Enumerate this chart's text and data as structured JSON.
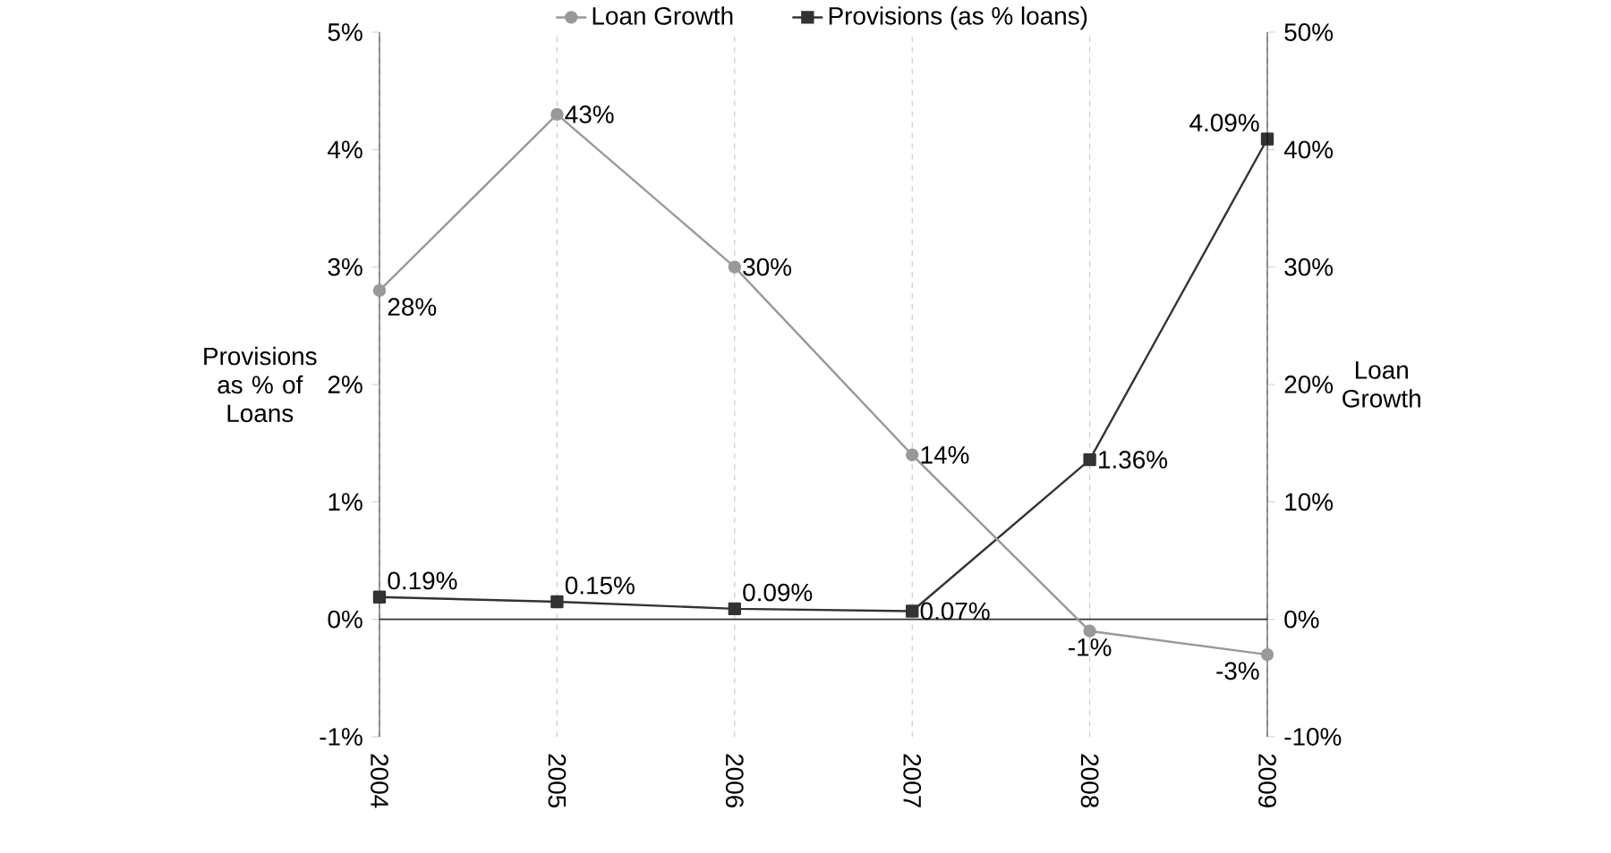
{
  "chart_data": {
    "type": "line",
    "categories": [
      "2004",
      "2005",
      "2006",
      "2007",
      "2008",
      "2009"
    ],
    "ylabel": "Provisions as % of Loans",
    "y2label": "Loan Growth",
    "ylim": [
      -1,
      5
    ],
    "yticks": [
      {
        "value": -1,
        "label": "-1%"
      },
      {
        "value": 0,
        "label": "0%"
      },
      {
        "value": 1,
        "label": "1%"
      },
      {
        "value": 2,
        "label": "2%"
      },
      {
        "value": 3,
        "label": "3%"
      },
      {
        "value": 4,
        "label": "4%"
      },
      {
        "value": 5,
        "label": "5%"
      }
    ],
    "y2lim": [
      -10,
      50
    ],
    "y2ticks": [
      {
        "value": -10,
        "label": "-10%"
      },
      {
        "value": 0,
        "label": "0%"
      },
      {
        "value": 10,
        "label": "10%"
      },
      {
        "value": 20,
        "label": "20%"
      },
      {
        "value": 30,
        "label": "30%"
      },
      {
        "value": 40,
        "label": "40%"
      },
      {
        "value": 50,
        "label": "50%"
      }
    ],
    "series": [
      {
        "name": "Loan Growth",
        "color": "#999999",
        "axis": "y2",
        "marker": "circle",
        "values": [
          28,
          43,
          30,
          14,
          -1,
          -3
        ],
        "value_labels": [
          "28%",
          "43%",
          "30%",
          "14%",
          "-1%",
          "-3%"
        ]
      },
      {
        "name": "Provisions (as % loans)",
        "color": "#333333",
        "axis": "y",
        "marker": "square",
        "values": [
          0.19,
          0.15,
          0.09,
          0.07,
          1.36,
          4.09
        ],
        "value_labels": [
          "0.19%",
          "0.15%",
          "0.09%",
          "0.07%",
          "1.36%",
          "4.09%"
        ]
      }
    ],
    "ref_lines": [
      {
        "axis": "y",
        "value": 0,
        "color": "#333333"
      }
    ],
    "grid": "x",
    "legend": "top"
  }
}
